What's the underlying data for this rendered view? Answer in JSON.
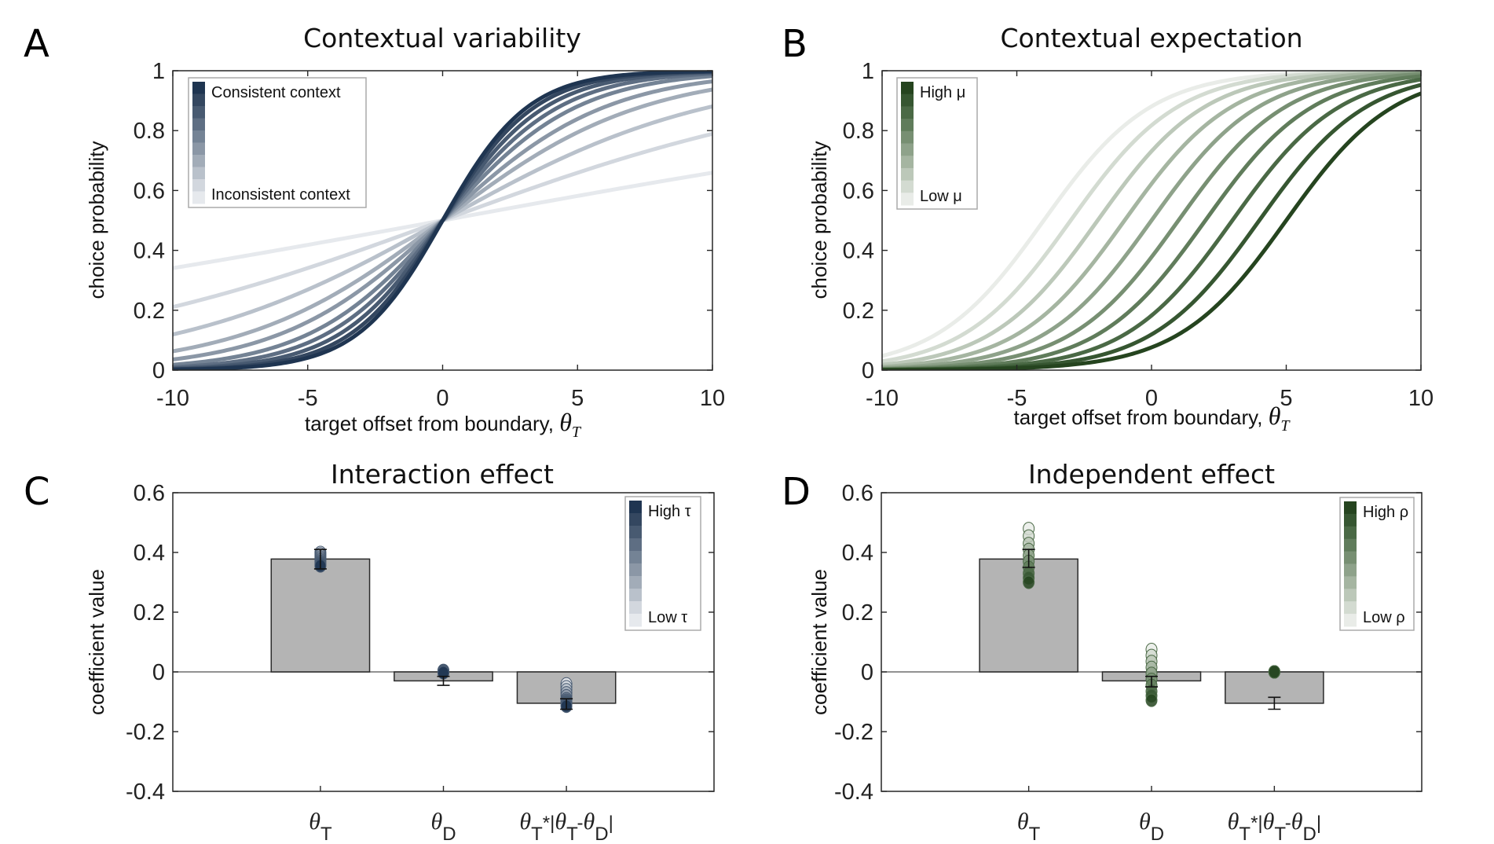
{
  "chart_data": [
    {
      "id": "A",
      "type": "line",
      "panel_letter": "A",
      "title": "Contextual variability",
      "xlabel": "target offset from boundary, ",
      "xlabel_symbol": "θ",
      "xlabel_sub": "T",
      "ylabel": "choice probability",
      "xlim": [
        -10,
        10
      ],
      "ylim": [
        0,
        1
      ],
      "xticks": [
        -10,
        -5,
        0,
        5,
        10
      ],
      "xtick_labels": [
        "-10",
        "-5",
        "0",
        "5",
        "10"
      ],
      "yticks": [
        0,
        0.2,
        0.4,
        0.6,
        0.8,
        1
      ],
      "ytick_labels": [
        "0",
        "0.2",
        "0.4",
        "0.6",
        "0.8",
        "1"
      ],
      "grid": false,
      "model": "logistic",
      "series": [
        {
          "name": "level 1 (inconsistent)",
          "center": 0,
          "slope": 0.066,
          "color": "#e6e9ed"
        },
        {
          "name": "level 2",
          "center": 0,
          "slope": 0.132,
          "color": "#d2d7de"
        },
        {
          "name": "level 3",
          "center": 0,
          "slope": 0.2,
          "color": "#b9c1cb"
        },
        {
          "name": "level 4",
          "center": 0,
          "slope": 0.27,
          "color": "#a2acb8"
        },
        {
          "name": "level 5",
          "center": 0,
          "slope": 0.33,
          "color": "#8b97a6"
        },
        {
          "name": "level 6",
          "center": 0,
          "slope": 0.4,
          "color": "#748395"
        },
        {
          "name": "level 7",
          "center": 0,
          "slope": 0.46,
          "color": "#5e6e83"
        },
        {
          "name": "level 8",
          "center": 0,
          "slope": 0.52,
          "color": "#485a71"
        },
        {
          "name": "level 9",
          "center": 0,
          "slope": 0.58,
          "color": "#344760"
        },
        {
          "name": "level 10 (consistent)",
          "center": 0,
          "slope": 0.63,
          "color": "#1f3551"
        }
      ],
      "legend": {
        "position": "top-left",
        "top_label": "Consistent context",
        "bottom_label": "Inconsistent context",
        "swatches": [
          "#1f3551",
          "#344760",
          "#485a71",
          "#5e6e83",
          "#748395",
          "#8b97a6",
          "#a2acb8",
          "#b9c1cb",
          "#d2d7de",
          "#e6e9ed"
        ]
      }
    },
    {
      "id": "B",
      "type": "line",
      "panel_letter": "B",
      "title": "Contextual expectation",
      "xlabel": "target offset from boundary, ",
      "xlabel_symbol": "θ",
      "xlabel_sub": "T",
      "ylabel": "choice probability",
      "xlim": [
        -10,
        10
      ],
      "ylim": [
        0,
        1
      ],
      "xticks": [
        -10,
        -5,
        0,
        5,
        10
      ],
      "xtick_labels": [
        "-10",
        "-5",
        "0",
        "5",
        "10"
      ],
      "yticks": [
        0,
        0.2,
        0.4,
        0.6,
        0.8,
        1
      ],
      "ytick_labels": [
        "0",
        "0.2",
        "0.4",
        "0.6",
        "0.8",
        "1"
      ],
      "grid": false,
      "model": "logistic",
      "series": [
        {
          "name": "mu level 1 (low)",
          "center": -4,
          "slope": 0.5,
          "color": "#e9ece8"
        },
        {
          "name": "mu level 2",
          "center": -3,
          "slope": 0.5,
          "color": "#d3dbd1"
        },
        {
          "name": "mu level 3",
          "center": -2,
          "slope": 0.5,
          "color": "#bcc8b9"
        },
        {
          "name": "mu level 4",
          "center": -1,
          "slope": 0.5,
          "color": "#a5b5a1"
        },
        {
          "name": "mu level 5",
          "center": 0,
          "slope": 0.5,
          "color": "#8ea28a"
        },
        {
          "name": "mu level 6",
          "center": 1,
          "slope": 0.5,
          "color": "#778f72"
        },
        {
          "name": "mu level 7",
          "center": 2,
          "slope": 0.5,
          "color": "#607c5b"
        },
        {
          "name": "mu level 8",
          "center": 3,
          "slope": 0.5,
          "color": "#4a6945"
        },
        {
          "name": "mu level 9",
          "center": 4,
          "slope": 0.5,
          "color": "#365631"
        },
        {
          "name": "mu level 10 (high)",
          "center": 5,
          "slope": 0.5,
          "color": "#25441f"
        }
      ],
      "legend": {
        "position": "top-left",
        "top_label": "High μ",
        "bottom_label": "Low μ",
        "swatches": [
          "#25441f",
          "#365631",
          "#4a6945",
          "#607c5b",
          "#778f72",
          "#8ea28a",
          "#a5b5a1",
          "#bcc8b9",
          "#d3dbd1",
          "#e9ece8"
        ]
      }
    },
    {
      "id": "C",
      "type": "bar",
      "panel_letter": "C",
      "title": "Interaction effect",
      "ylabel": "coefficient value",
      "ylim": [
        -0.4,
        0.6
      ],
      "yticks": [
        -0.4,
        -0.2,
        0,
        0.2,
        0.4,
        0.6
      ],
      "ytick_labels": [
        "-0.4",
        "-0.2",
        "0",
        "0.2",
        "0.4",
        "0.6"
      ],
      "grid": false,
      "categories": [
        {
          "symbol": "θ",
          "sub": "T",
          "rest": []
        },
        {
          "symbol": "θ",
          "sub": "D",
          "rest": []
        },
        {
          "symbol": "θ",
          "sub": "T",
          "rest": [
            {
              "t": "*|"
            },
            {
              "sym": "θ"
            },
            {
              "sub": "T"
            },
            {
              "t": "-"
            },
            {
              "sym": "θ"
            },
            {
              "sub": "D"
            },
            {
              "t": "|"
            }
          ]
        }
      ],
      "category_names": [
        "θ_T",
        "θ_D",
        "θ_T*|θ_T-θ_D|"
      ],
      "values": [
        0.378,
        -0.03,
        -0.105
      ],
      "error_bars": [
        [
          0.345,
          0.41
        ],
        [
          -0.045,
          -0.015
        ],
        [
          -0.125,
          -0.09
        ]
      ],
      "bar_color": "#b4b4b4",
      "points": [
        [
          0.4,
          0.395,
          0.39,
          0.385,
          0.38,
          0.375,
          0.37,
          0.365,
          0.36,
          0.355
        ],
        [
          0.005,
          0.004,
          0.003,
          0.002,
          0.001,
          0.0,
          0.0,
          -0.001,
          -0.002,
          -0.003
        ],
        [
          -0.04,
          -0.05,
          -0.06,
          -0.07,
          -0.08,
          -0.09,
          -0.095,
          -0.1,
          -0.11,
          -0.115
        ]
      ],
      "point_colors": [
        "#e6e9ed",
        "#d2d7de",
        "#b9c1cb",
        "#a2acb8",
        "#8b97a6",
        "#748395",
        "#5e6e83",
        "#485a71",
        "#344760",
        "#1f3551"
      ],
      "legend": {
        "position": "top-right",
        "top_label": "High τ",
        "bottom_label": "Low τ",
        "swatches": [
          "#1f3551",
          "#344760",
          "#485a71",
          "#5e6e83",
          "#748395",
          "#8b97a6",
          "#a2acb8",
          "#b9c1cb",
          "#d2d7de",
          "#e6e9ed"
        ]
      }
    },
    {
      "id": "D",
      "type": "bar",
      "panel_letter": "D",
      "title": "Independent effect",
      "ylabel": "coefficient value",
      "ylim": [
        -0.4,
        0.6
      ],
      "yticks": [
        -0.4,
        -0.2,
        0,
        0.2,
        0.4,
        0.6
      ],
      "ytick_labels": [
        "-0.4",
        "-0.2",
        "0",
        "0.2",
        "0.4",
        "0.6"
      ],
      "grid": false,
      "categories": [
        {
          "symbol": "θ",
          "sub": "T",
          "rest": []
        },
        {
          "symbol": "θ",
          "sub": "D",
          "rest": []
        },
        {
          "symbol": "θ",
          "sub": "T",
          "rest": [
            {
              "t": "*|"
            },
            {
              "sym": "θ"
            },
            {
              "sub": "T"
            },
            {
              "t": "-"
            },
            {
              "sym": "θ"
            },
            {
              "sub": "D"
            },
            {
              "t": "|"
            }
          ]
        }
      ],
      "category_names": [
        "θ_T",
        "θ_D",
        "θ_T*|θ_T-θ_D|"
      ],
      "values": [
        0.378,
        -0.03,
        -0.105
      ],
      "error_bars": [
        [
          0.35,
          0.41
        ],
        [
          -0.05,
          -0.015
        ],
        [
          -0.125,
          -0.085
        ]
      ],
      "bar_color": "#b4b4b4",
      "points": [
        [
          0.48,
          0.455,
          0.43,
          0.41,
          0.39,
          0.37,
          0.35,
          0.33,
          0.315,
          0.3
        ],
        [
          0.075,
          0.055,
          0.035,
          0.015,
          -0.005,
          -0.025,
          -0.045,
          -0.065,
          -0.08,
          -0.095
        ],
        [
          0.0,
          0.0,
          0.0,
          0.0,
          0.0,
          0.0,
          0.0,
          0.0,
          0.0,
          0.0
        ]
      ],
      "point_colors": [
        "#e9ece8",
        "#d3dbd1",
        "#bcc8b9",
        "#a5b5a1",
        "#8ea28a",
        "#778f72",
        "#607c5b",
        "#4a6945",
        "#365631",
        "#25441f"
      ],
      "legend": {
        "position": "top-right",
        "top_label": "High ρ",
        "bottom_label": "Low ρ",
        "swatches": [
          "#25441f",
          "#365631",
          "#4a6945",
          "#607c5b",
          "#778f72",
          "#8ea28a",
          "#a5b5a1",
          "#bcc8b9",
          "#d3dbd1",
          "#e9ece8"
        ]
      }
    }
  ]
}
